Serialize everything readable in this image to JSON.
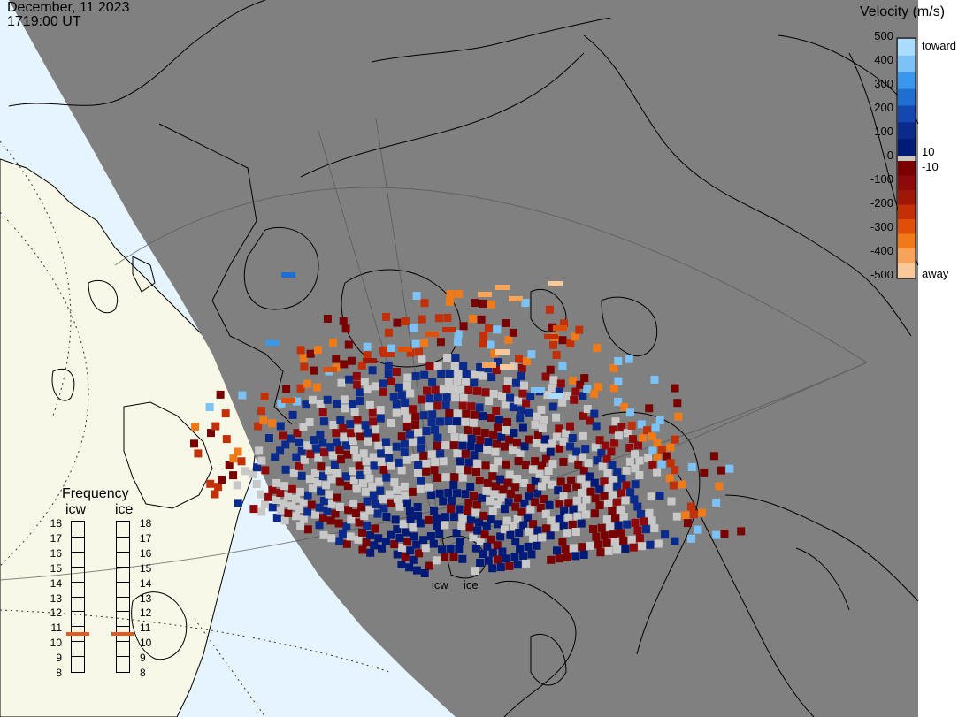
{
  "header": {
    "date": "December, 11 2023",
    "time": "1719:00 UT"
  },
  "colorbar": {
    "title": "Velocity (m/s)",
    "left_ticks": [
      "500",
      "400",
      "300",
      "200",
      "100",
      "0",
      "-100",
      "-200",
      "-300",
      "-400",
      "-500"
    ],
    "right_top": "toward",
    "right_mid_pos": "10",
    "right_mid_neg": "-10",
    "right_bottom": "away",
    "colors_toward": [
      "#a9dcff",
      "#7cc2f7",
      "#3a98ec",
      "#1e6fd1",
      "#1547b0",
      "#0b2b8c",
      "#001a78"
    ],
    "colors_away": [
      "#7a0000",
      "#8e0a0a",
      "#a01607",
      "#c23007",
      "#e04f08",
      "#f07a18",
      "#f7a45a",
      "#fbc89a"
    ],
    "ground_scatter_color": "#c8c8c8"
  },
  "frequency": {
    "title": "Frequency",
    "stations": [
      {
        "name": "icw",
        "value": 10.5
      },
      {
        "name": "ice",
        "value": 10.5
      }
    ],
    "scale": [
      "18",
      "17",
      "16",
      "15",
      "14",
      "13",
      "12",
      "11",
      "10",
      "9",
      "8"
    ]
  },
  "radar_labels": {
    "icw": "icw",
    "ice": "ice"
  },
  "map": {
    "day_land_color": "#f8f8e8",
    "day_ocean_color": "#e6f4ff",
    "night_color": "#808080"
  }
}
